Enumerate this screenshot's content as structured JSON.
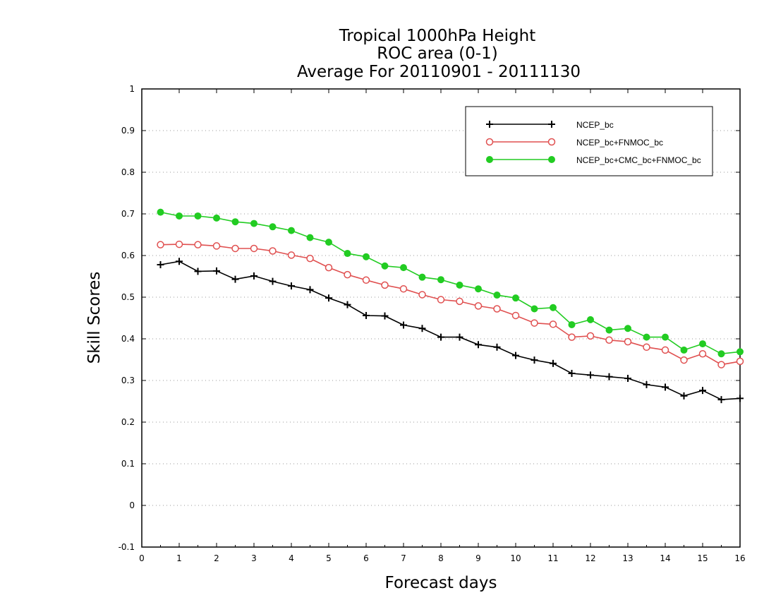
{
  "chart_data": {
    "type": "line",
    "title_lines": [
      "Tropical 1000hPa Height",
      "ROC area (0-1)",
      "Average For 20110901 - 20111130"
    ],
    "xlabel": "Forecast days",
    "ylabel": "Skill Scores",
    "xlim": [
      0,
      16
    ],
    "ylim": [
      -0.1,
      1
    ],
    "x_ticks": [
      "0",
      "1",
      "2",
      "3",
      "4",
      "5",
      "6",
      "7",
      "8",
      "9",
      "10",
      "11",
      "12",
      "13",
      "14",
      "15",
      "16"
    ],
    "y_ticks": [
      "-0.1",
      "0",
      "0.1",
      "0.2",
      "0.3",
      "0.4",
      "0.5",
      "0.6",
      "0.7",
      "0.8",
      "0.9",
      "1"
    ],
    "grid": "horizontal dotted",
    "legend_position": "top-right",
    "x": [
      0.5,
      1,
      1.5,
      2,
      2.5,
      3,
      3.5,
      4,
      4.5,
      5,
      5.5,
      6,
      6.5,
      7,
      7.5,
      8,
      8.5,
      9,
      9.5,
      10,
      10.5,
      11,
      11.5,
      12,
      12.5,
      13,
      13.5,
      14,
      14.5,
      15,
      15.5,
      16
    ],
    "series": [
      {
        "name": "NCEP_bc",
        "color": "#000000",
        "marker": "plus",
        "values": [
          0.578,
          0.586,
          0.562,
          0.563,
          0.543,
          0.551,
          0.538,
          0.527,
          0.518,
          0.498,
          0.482,
          0.456,
          0.455,
          0.433,
          0.425,
          0.404,
          0.404,
          0.386,
          0.38,
          0.36,
          0.349,
          0.341,
          0.317,
          0.313,
          0.309,
          0.305,
          0.29,
          0.284,
          0.263,
          0.276,
          0.254,
          0.257
        ]
      },
      {
        "name": "NCEP_bc+FNMOC_bc",
        "color": "#e05050",
        "marker": "open-circle",
        "values": [
          0.626,
          0.627,
          0.626,
          0.623,
          0.617,
          0.617,
          0.611,
          0.601,
          0.593,
          0.571,
          0.554,
          0.541,
          0.529,
          0.52,
          0.506,
          0.494,
          0.49,
          0.479,
          0.472,
          0.456,
          0.438,
          0.435,
          0.404,
          0.407,
          0.397,
          0.393,
          0.38,
          0.373,
          0.349,
          0.364,
          0.338,
          0.346
        ]
      },
      {
        "name": "NCEP_bc+CMC_bc+FNMOC_bc",
        "color": "#22cc22",
        "marker": "filled-circle",
        "values": [
          0.704,
          0.695,
          0.695,
          0.69,
          0.681,
          0.677,
          0.669,
          0.66,
          0.643,
          0.632,
          0.605,
          0.597,
          0.575,
          0.571,
          0.548,
          0.542,
          0.529,
          0.52,
          0.505,
          0.498,
          0.472,
          0.475,
          0.434,
          0.446,
          0.421,
          0.425,
          0.404,
          0.404,
          0.373,
          0.388,
          0.364,
          0.369
        ]
      }
    ]
  }
}
